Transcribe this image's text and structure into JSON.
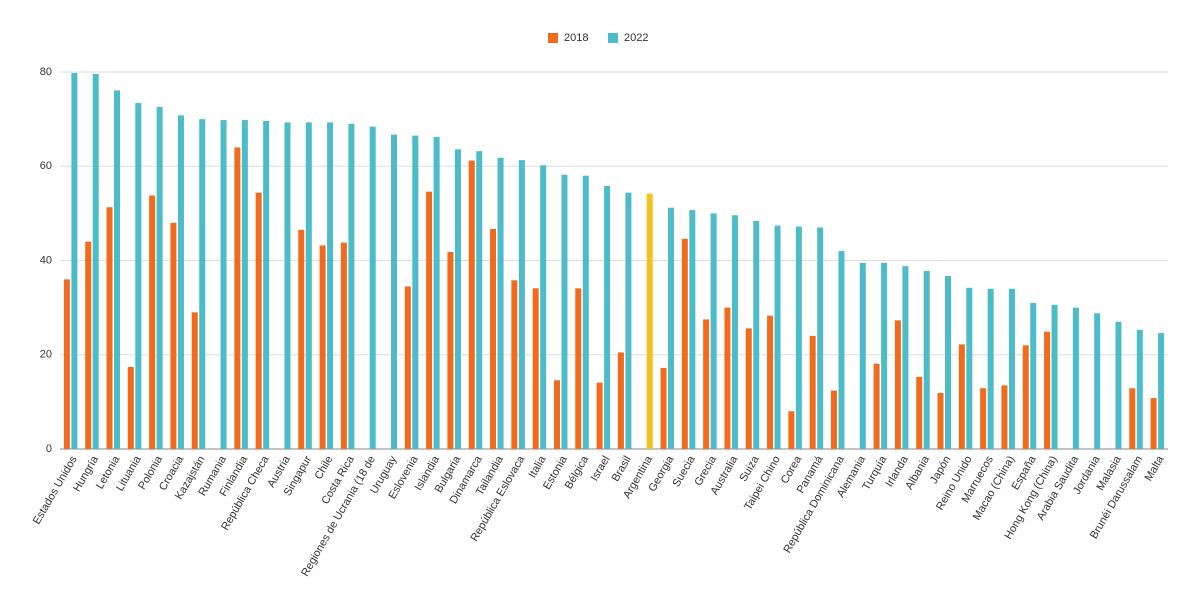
{
  "chart_data": {
    "type": "bar",
    "categories": [
      "Estados Unidos",
      "Hungría",
      "Letonia",
      "Lituania",
      "Polonia",
      "Croacia",
      "Kazajstán",
      "Rumania",
      "Finlandia",
      "República Checa",
      "Austria",
      "Singapur",
      "Chile",
      "Costa Rica",
      "Regiones de Ucrania (18 de",
      "Uruguay",
      "Eslovenia",
      "Islandia",
      "Bulgaria",
      "Dinamarca",
      "Tailandia",
      "República Eslovaca",
      "Italia",
      "Estonia",
      "Bélgica",
      "Israel",
      "Brasil",
      "Argentina",
      "Georgia",
      "Suecia",
      "Grecia",
      "Australia",
      "Suiza",
      "Taipei Chino",
      "Corea",
      "Panamá",
      "República Dominicana",
      "Alemania",
      "Turquía",
      "Irlanda",
      "Albania",
      "Japón",
      "Reino Unido",
      "Marruecos",
      "Macao (China)",
      "España",
      "Hong Kong (China)",
      "Arabia Saudita",
      "Jordania",
      "Malasia",
      "Brunéi Darussalam",
      "Malta"
    ],
    "series": [
      {
        "name": "2018",
        "color": "#f26b1d",
        "values": [
          36,
          44,
          51.3,
          17.4,
          53.8,
          48,
          29,
          null,
          64,
          54.4,
          null,
          46.5,
          43.2,
          43.8,
          null,
          null,
          34.5,
          54.6,
          41.8,
          61.2,
          46.7,
          35.8,
          34.1,
          14.6,
          34.1,
          14.1,
          20.5,
          null,
          17.2,
          44.6,
          27.5,
          30,
          25.6,
          28.3,
          8,
          24,
          12.4,
          null,
          18.1,
          27.3,
          15.3,
          11.9,
          22.2,
          12.9,
          13.5,
          22,
          24.9,
          null,
          null,
          null,
          12.9,
          10.8
        ]
      },
      {
        "name": "2022",
        "color": "#4bbcc8",
        "highlight": {
          "category": "Argentina",
          "color": "#f5c21b"
        },
        "values": [
          79.8,
          79.6,
          76.1,
          73.4,
          72.6,
          70.8,
          70,
          69.8,
          69.8,
          69.6,
          69.3,
          69.3,
          69.3,
          69,
          68.4,
          66.7,
          66.5,
          66.2,
          63.6,
          63.2,
          61.8,
          61.3,
          60.2,
          58.2,
          58,
          55.8,
          54.4,
          54.2,
          51.2,
          50.7,
          50,
          49.6,
          48.4,
          47.4,
          47.2,
          47,
          42,
          39.5,
          39.5,
          38.8,
          37.8,
          36.7,
          34.2,
          34,
          34,
          31,
          30.6,
          30,
          28.8,
          27,
          25.3,
          24.6
        ]
      }
    ],
    "ylim": [
      0,
      80
    ],
    "yticks": [
      0,
      20,
      40,
      60,
      80
    ],
    "grid": true,
    "legend": "top"
  }
}
